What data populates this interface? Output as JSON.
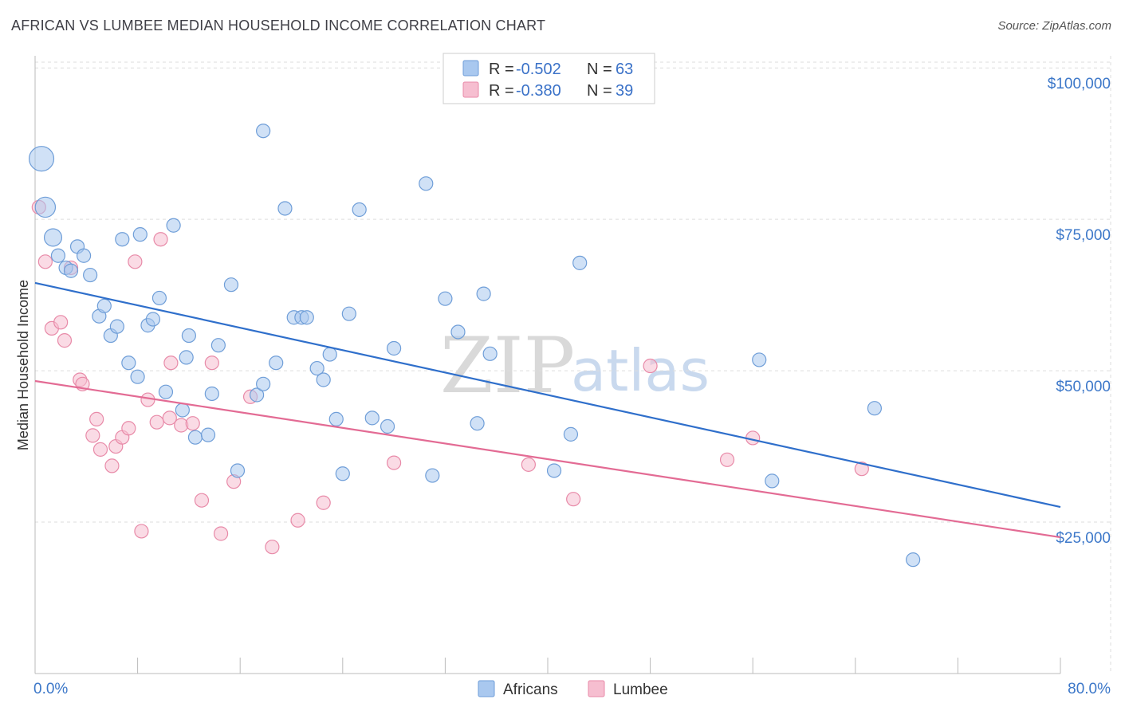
{
  "header": {
    "title": "AFRICAN VS LUMBEE MEDIAN HOUSEHOLD INCOME CORRELATION CHART",
    "source": "Source: ZipAtlas.com"
  },
  "watermark": {
    "zip": "ZIP",
    "atlas": "atlas"
  },
  "colors": {
    "africans_fill": "#a9c8ef",
    "africans_stroke": "#6f9ed8",
    "africans_line": "#2f6fcb",
    "lumbee_fill": "#f6bed0",
    "lumbee_stroke": "#e88aa8",
    "lumbee_line": "#e36b94",
    "grid": "#dddddd",
    "axis_text": "#3d78c9"
  },
  "stats_box": {
    "rows": [
      {
        "r_label": "R =",
        "r_value": "-0.502",
        "n_label": "N =",
        "n_value": "63"
      },
      {
        "r_label": "R =",
        "r_value": "-0.380",
        "n_label": "N =",
        "n_value": "39"
      }
    ]
  },
  "chart_data": {
    "type": "scatter",
    "title": "AFRICAN VS LUMBEE MEDIAN HOUSEHOLD INCOME CORRELATION CHART",
    "xlabel": "",
    "ylabel": "Median Household Income",
    "xlim": [
      0,
      80
    ],
    "ylim": [
      0,
      102000
    ],
    "x_tick_labels": [
      "0.0%",
      "80.0%"
    ],
    "y_ticks": [
      25000,
      50000,
      75000,
      100000
    ],
    "y_tick_labels": [
      "$25,000",
      "$50,000",
      "$75,000",
      "$100,000"
    ],
    "grid": true,
    "legend_position": "bottom-center",
    "series": [
      {
        "name": "Africans",
        "trend": {
          "x": [
            0,
            80
          ],
          "y": [
            64500,
            27500
          ]
        },
        "points": [
          {
            "x": 0.5,
            "y": 85000,
            "s": 3
          },
          {
            "x": 0.8,
            "y": 77000,
            "s": 2
          },
          {
            "x": 1.4,
            "y": 72000,
            "s": 1.5
          },
          {
            "x": 1.8,
            "y": 69000,
            "s": 1
          },
          {
            "x": 2.4,
            "y": 67000,
            "s": 1
          },
          {
            "x": 2.8,
            "y": 66500,
            "s": 1
          },
          {
            "x": 3.3,
            "y": 70500,
            "s": 1
          },
          {
            "x": 3.8,
            "y": 69000,
            "s": 1
          },
          {
            "x": 4.3,
            "y": 65800,
            "s": 1
          },
          {
            "x": 5.0,
            "y": 59000,
            "s": 1
          },
          {
            "x": 5.4,
            "y": 60700,
            "s": 1
          },
          {
            "x": 5.9,
            "y": 55800,
            "s": 1
          },
          {
            "x": 6.4,
            "y": 57300,
            "s": 1
          },
          {
            "x": 6.8,
            "y": 71700,
            "s": 1
          },
          {
            "x": 7.3,
            "y": 51300,
            "s": 1
          },
          {
            "x": 8.0,
            "y": 49000,
            "s": 1
          },
          {
            "x": 8.2,
            "y": 72500,
            "s": 1
          },
          {
            "x": 8.8,
            "y": 57500,
            "s": 1
          },
          {
            "x": 9.2,
            "y": 58500,
            "s": 1
          },
          {
            "x": 9.7,
            "y": 62000,
            "s": 1
          },
          {
            "x": 10.2,
            "y": 46500,
            "s": 1
          },
          {
            "x": 10.8,
            "y": 74000,
            "s": 1
          },
          {
            "x": 11.5,
            "y": 43500,
            "s": 1
          },
          {
            "x": 11.8,
            "y": 52200,
            "s": 1
          },
          {
            "x": 12.0,
            "y": 55800,
            "s": 1
          },
          {
            "x": 12.5,
            "y": 39000,
            "s": 1
          },
          {
            "x": 13.5,
            "y": 39400,
            "s": 1
          },
          {
            "x": 13.8,
            "y": 46200,
            "s": 1
          },
          {
            "x": 14.3,
            "y": 54200,
            "s": 1
          },
          {
            "x": 15.3,
            "y": 64200,
            "s": 1
          },
          {
            "x": 15.8,
            "y": 33500,
            "s": 1
          },
          {
            "x": 17.3,
            "y": 46000,
            "s": 1
          },
          {
            "x": 17.8,
            "y": 89600,
            "s": 1
          },
          {
            "x": 17.8,
            "y": 47800,
            "s": 1
          },
          {
            "x": 18.8,
            "y": 51300,
            "s": 1
          },
          {
            "x": 19.5,
            "y": 76800,
            "s": 1
          },
          {
            "x": 20.2,
            "y": 58800,
            "s": 1
          },
          {
            "x": 20.8,
            "y": 58800,
            "s": 1
          },
          {
            "x": 21.2,
            "y": 58800,
            "s": 1
          },
          {
            "x": 22.0,
            "y": 50400,
            "s": 1
          },
          {
            "x": 22.5,
            "y": 48500,
            "s": 1
          },
          {
            "x": 23.0,
            "y": 52700,
            "s": 1
          },
          {
            "x": 23.5,
            "y": 42000,
            "s": 1
          },
          {
            "x": 24.0,
            "y": 33000,
            "s": 1
          },
          {
            "x": 24.5,
            "y": 59400,
            "s": 1
          },
          {
            "x": 25.3,
            "y": 76600,
            "s": 1
          },
          {
            "x": 26.3,
            "y": 42200,
            "s": 1
          },
          {
            "x": 27.5,
            "y": 40800,
            "s": 1
          },
          {
            "x": 28.0,
            "y": 53700,
            "s": 1
          },
          {
            "x": 30.5,
            "y": 80900,
            "s": 1
          },
          {
            "x": 31.0,
            "y": 32700,
            "s": 1
          },
          {
            "x": 32.0,
            "y": 61900,
            "s": 1
          },
          {
            "x": 33.0,
            "y": 56400,
            "s": 1
          },
          {
            "x": 34.5,
            "y": 41300,
            "s": 1
          },
          {
            "x": 35.0,
            "y": 62700,
            "s": 1
          },
          {
            "x": 35.5,
            "y": 52800,
            "s": 1
          },
          {
            "x": 40.5,
            "y": 33500,
            "s": 1
          },
          {
            "x": 41.8,
            "y": 39500,
            "s": 1
          },
          {
            "x": 42.5,
            "y": 67800,
            "s": 1
          },
          {
            "x": 56.5,
            "y": 51800,
            "s": 1
          },
          {
            "x": 57.5,
            "y": 31800,
            "s": 1
          },
          {
            "x": 65.5,
            "y": 43800,
            "s": 1
          },
          {
            "x": 68.5,
            "y": 18800,
            "s": 1
          }
        ]
      },
      {
        "name": "Lumbee",
        "trend": {
          "x": [
            0,
            80
          ],
          "y": [
            48300,
            22500
          ]
        },
        "points": [
          {
            "x": 0.3,
            "y": 77000,
            "s": 1
          },
          {
            "x": 0.8,
            "y": 68000,
            "s": 1
          },
          {
            "x": 1.3,
            "y": 57000,
            "s": 1
          },
          {
            "x": 2.0,
            "y": 58000,
            "s": 1
          },
          {
            "x": 2.3,
            "y": 55000,
            "s": 1
          },
          {
            "x": 2.8,
            "y": 67000,
            "s": 1
          },
          {
            "x": 3.5,
            "y": 48500,
            "s": 1
          },
          {
            "x": 3.7,
            "y": 47800,
            "s": 1
          },
          {
            "x": 4.5,
            "y": 39300,
            "s": 1
          },
          {
            "x": 4.8,
            "y": 42000,
            "s": 1
          },
          {
            "x": 5.1,
            "y": 37000,
            "s": 1
          },
          {
            "x": 6.0,
            "y": 34300,
            "s": 1
          },
          {
            "x": 6.3,
            "y": 37500,
            "s": 1
          },
          {
            "x": 6.8,
            "y": 39000,
            "s": 1
          },
          {
            "x": 7.3,
            "y": 40500,
            "s": 1
          },
          {
            "x": 7.8,
            "y": 68000,
            "s": 1
          },
          {
            "x": 8.3,
            "y": 23500,
            "s": 1
          },
          {
            "x": 8.8,
            "y": 45200,
            "s": 1
          },
          {
            "x": 9.5,
            "y": 41500,
            "s": 1
          },
          {
            "x": 9.8,
            "y": 71700,
            "s": 1
          },
          {
            "x": 10.5,
            "y": 42200,
            "s": 1
          },
          {
            "x": 10.6,
            "y": 51300,
            "s": 1
          },
          {
            "x": 11.4,
            "y": 41000,
            "s": 1
          },
          {
            "x": 12.3,
            "y": 41300,
            "s": 1
          },
          {
            "x": 13.0,
            "y": 28600,
            "s": 1
          },
          {
            "x": 13.8,
            "y": 51300,
            "s": 1
          },
          {
            "x": 14.5,
            "y": 23100,
            "s": 1
          },
          {
            "x": 15.5,
            "y": 31700,
            "s": 1
          },
          {
            "x": 16.8,
            "y": 45700,
            "s": 1
          },
          {
            "x": 18.5,
            "y": 20900,
            "s": 1
          },
          {
            "x": 20.5,
            "y": 25300,
            "s": 1
          },
          {
            "x": 22.5,
            "y": 28200,
            "s": 1
          },
          {
            "x": 28.0,
            "y": 34800,
            "s": 1
          },
          {
            "x": 38.5,
            "y": 34500,
            "s": 1
          },
          {
            "x": 42.0,
            "y": 28800,
            "s": 1
          },
          {
            "x": 48.0,
            "y": 50800,
            "s": 1
          },
          {
            "x": 54.0,
            "y": 35300,
            "s": 1
          },
          {
            "x": 56.0,
            "y": 38900,
            "s": 1
          },
          {
            "x": 64.5,
            "y": 33800,
            "s": 1
          }
        ]
      }
    ]
  },
  "legend": {
    "items": [
      {
        "label": "Africans"
      },
      {
        "label": "Lumbee"
      }
    ]
  }
}
